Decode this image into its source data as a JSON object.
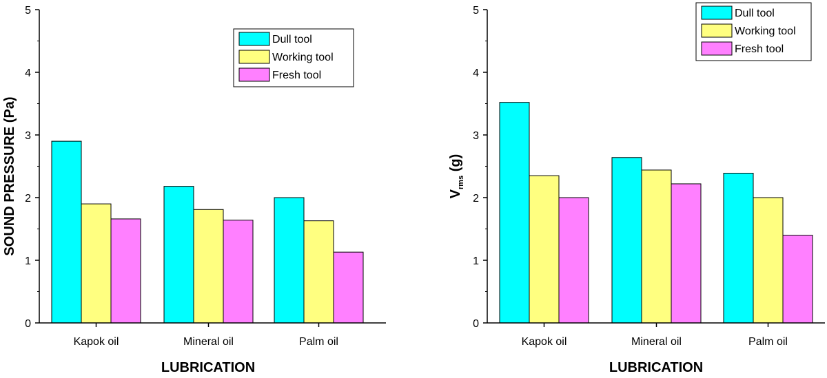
{
  "chart_data": [
    {
      "type": "bar",
      "categories": [
        "Kapok oil",
        "Mineral oil",
        "Palm oil"
      ],
      "series": [
        {
          "name": "Dull tool",
          "color": "#00FFFF",
          "values": [
            2.9,
            2.18,
            2.0
          ]
        },
        {
          "name": "Working tool",
          "color": "#FFFF80",
          "values": [
            1.9,
            1.81,
            1.63
          ]
        },
        {
          "name": "Fresh tool",
          "color": "#FF80FF",
          "values": [
            1.66,
            1.64,
            1.13
          ]
        }
      ],
      "xlabel": "LUBRICATION",
      "ylabel": "SOUND PRESSURE (Pa)",
      "ylim": [
        0,
        5
      ],
      "yticks": [
        "0",
        "1",
        "2",
        "3",
        "4",
        "5"
      ],
      "legend_position": "top-right",
      "grid": false
    },
    {
      "type": "bar",
      "categories": [
        "Kapok oil",
        "Mineral oil",
        "Palm oil"
      ],
      "series": [
        {
          "name": "Dull tool",
          "color": "#00FFFF",
          "values": [
            3.52,
            2.64,
            2.39
          ]
        },
        {
          "name": "Working tool",
          "color": "#FFFF80",
          "values": [
            2.35,
            2.44,
            2.0
          ]
        },
        {
          "name": "Fresh tool",
          "color": "#FF80FF",
          "values": [
            2.0,
            2.22,
            1.4
          ]
        }
      ],
      "xlabel": "LUBRICATION",
      "ylabel_main": "V",
      "ylabel_sub": "rms",
      "ylabel_unit": " (g)",
      "ylim": [
        0,
        5
      ],
      "yticks": [
        "0",
        "1",
        "2",
        "3",
        "4",
        "5"
      ],
      "legend_position": "top-right",
      "grid": false
    }
  ]
}
